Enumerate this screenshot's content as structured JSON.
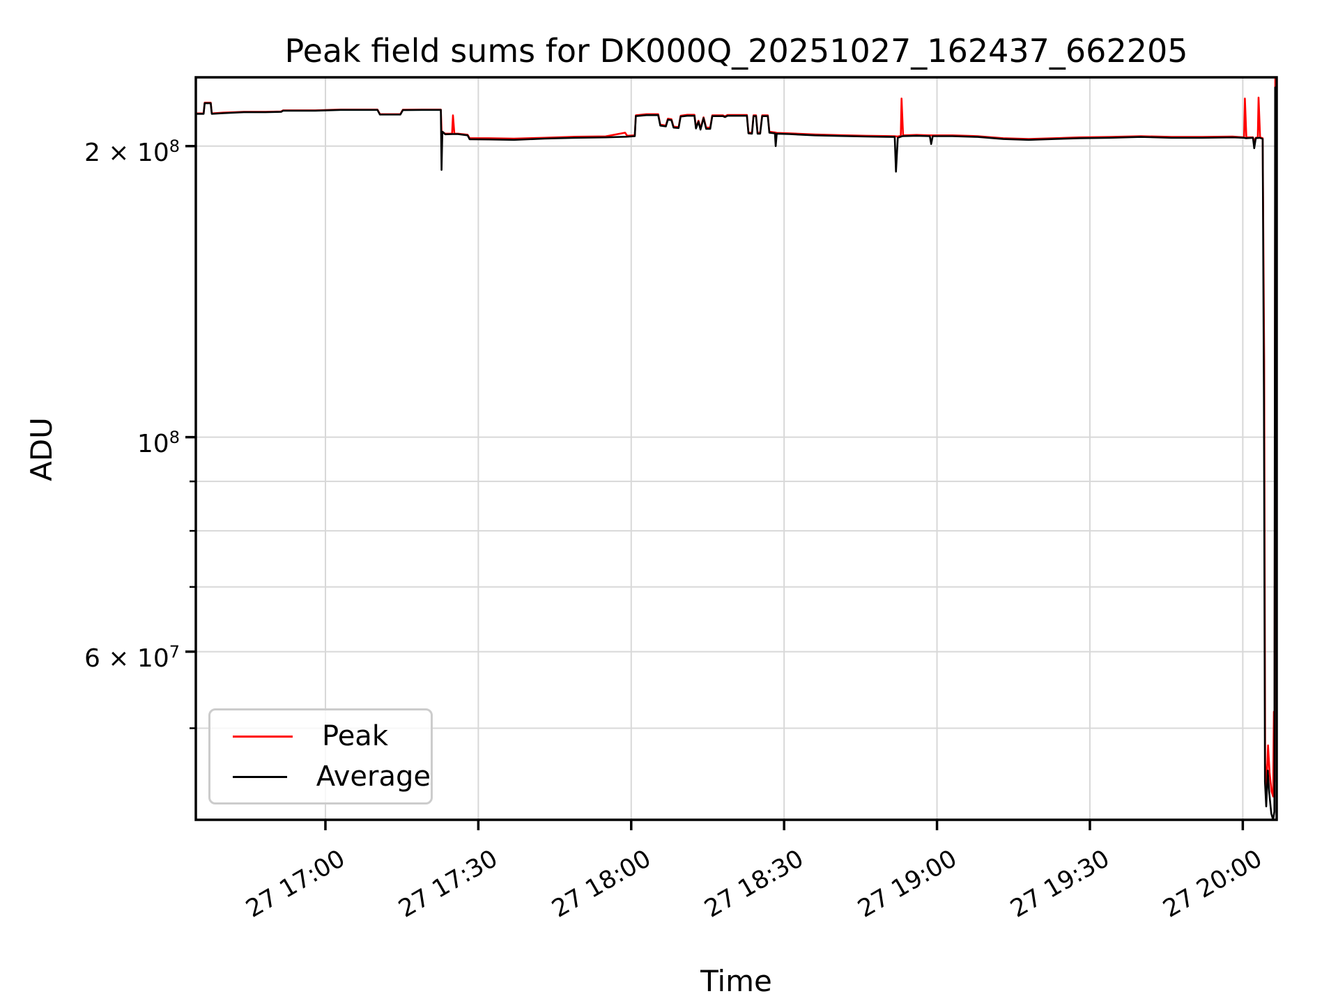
{
  "figure": {
    "background": "#ffffff"
  },
  "chart_data": {
    "type": "line",
    "title": "Peak field sums for DK000Q_20251027_162437_662205",
    "xlabel": "Time",
    "ylabel": "ADU",
    "x_unit": "minutes after Oct 27 16:00",
    "y_unit": "ADU",
    "y_scale": "log",
    "grid": true,
    "legend_position": "lower-left",
    "colors": {
      "peak": "#ff0000",
      "average": "#000000",
      "grid": "#d8d8d8",
      "spine": "#000000",
      "background": "#ffffff"
    },
    "xlim": [
      34.57,
      246.65
    ],
    "ylim": [
      40200000.0,
      235600000.0
    ],
    "x_ticks": [
      {
        "v": 60,
        "label": "27 17:00"
      },
      {
        "v": 90,
        "label": "27 17:30"
      },
      {
        "v": 120,
        "label": "27 18:00"
      },
      {
        "v": 150,
        "label": "27 18:30"
      },
      {
        "v": 180,
        "label": "27 19:00"
      },
      {
        "v": 210,
        "label": "27 19:30"
      },
      {
        "v": 240,
        "label": "27 20:00"
      }
    ],
    "y_ticks_major": [
      {
        "v": 200000000.0,
        "base": "2 × 10",
        "exp": "8"
      },
      {
        "v": 100000000.0,
        "base": "10",
        "exp": "8"
      },
      {
        "v": 60000000.0,
        "base": "6 × 10",
        "exp": "7"
      }
    ],
    "y_ticks_minor": [
      90000000.0,
      80000000.0,
      70000000.0,
      50000000.0
    ],
    "legend": {
      "entries": [
        {
          "label": "Peak",
          "color": "#ff0000"
        },
        {
          "label": "Average",
          "color": "#000000"
        }
      ]
    },
    "series": [
      {
        "name": "Peak",
        "color": "#ff0000",
        "points": [
          [
            34.57,
            216200000.0
          ],
          [
            36.1,
            216200000.0
          ],
          [
            36.3,
            221800000.0
          ],
          [
            37.5,
            221800000.0
          ],
          [
            37.7,
            216200000.0
          ],
          [
            40,
            216600000.0
          ],
          [
            44,
            217000000.0
          ],
          [
            48,
            217000000.0
          ],
          [
            51.3,
            217200000.0
          ],
          [
            51.7,
            217800000.0
          ],
          [
            58,
            217800000.0
          ],
          [
            63,
            218200000.0
          ],
          [
            70.2,
            218200000.0
          ],
          [
            70.7,
            215800000.0
          ],
          [
            74.7,
            215800000.0
          ],
          [
            75.2,
            218100000.0
          ],
          [
            79,
            218200000.0
          ],
          [
            82.65,
            218200000.0
          ],
          [
            82.8,
            207200000.0
          ],
          [
            83.5,
            206000000.0
          ],
          [
            84.85,
            206000000.0
          ],
          [
            85.02,
            215200000.0
          ],
          [
            85.3,
            206000000.0
          ],
          [
            86,
            206000000.0
          ],
          [
            87.9,
            205500000.0
          ],
          [
            88.3,
            203800000.0
          ],
          [
            92,
            203800000.0
          ],
          [
            97,
            203600000.0
          ],
          [
            103,
            204000000.0
          ],
          [
            109,
            204500000.0
          ],
          [
            115,
            204700000.0
          ],
          [
            118.8,
            206500000.0
          ],
          [
            119.2,
            205000000.0
          ],
          [
            120.7,
            205200000.0
          ],
          [
            120.9,
            215200000.0
          ],
          [
            123,
            215800000.0
          ],
          [
            125.3,
            215800000.0
          ],
          [
            125.7,
            210500000.0
          ],
          [
            126.8,
            210000000.0
          ],
          [
            127.2,
            213500000.0
          ],
          [
            127.9,
            213200000.0
          ],
          [
            128.3,
            209500000.0
          ],
          [
            129.3,
            209200000.0
          ],
          [
            129.7,
            215000000.0
          ],
          [
            131,
            215500000.0
          ],
          [
            132.4,
            215500000.0
          ],
          [
            132.7,
            209000000.0
          ],
          [
            133.2,
            212500000.0
          ],
          [
            133.6,
            208500000.0
          ],
          [
            134.2,
            214200000.0
          ],
          [
            134.7,
            209000000.0
          ],
          [
            135.5,
            209000000.0
          ],
          [
            135.9,
            215200000.0
          ],
          [
            138,
            215200000.0
          ],
          [
            138.4,
            214700000.0
          ],
          [
            138.9,
            215400000.0
          ],
          [
            142.7,
            215400000.0
          ],
          [
            143,
            206600000.0
          ],
          [
            143.7,
            206400000.0
          ],
          [
            144,
            215200000.0
          ],
          [
            144.5,
            215200000.0
          ],
          [
            144.8,
            206400000.0
          ],
          [
            145.3,
            206400000.0
          ],
          [
            145.7,
            215200000.0
          ],
          [
            146.8,
            215200000.0
          ],
          [
            147.1,
            207000000.0
          ],
          [
            148.2,
            206600000.0
          ],
          [
            148.55,
            206400000.0
          ],
          [
            151,
            206200000.0
          ],
          [
            156,
            205600000.0
          ],
          [
            161,
            205300000.0
          ],
          [
            166,
            205000000.0
          ],
          [
            171.7,
            204800000.0
          ],
          [
            172.3,
            204600000.0
          ],
          [
            172.9,
            205000000.0
          ],
          [
            173.05,
            224000000.0
          ],
          [
            173.35,
            205200000.0
          ],
          [
            176,
            205400000.0
          ],
          [
            178.6,
            205200000.0
          ],
          [
            179.15,
            205200000.0
          ],
          [
            183,
            205200000.0
          ],
          [
            188,
            204800000.0
          ],
          [
            193,
            203800000.0
          ],
          [
            198,
            203400000.0
          ],
          [
            203,
            203800000.0
          ],
          [
            208,
            204200000.0
          ],
          [
            214,
            204400000.0
          ],
          [
            220,
            204800000.0
          ],
          [
            226,
            204400000.0
          ],
          [
            232,
            204400000.0
          ],
          [
            238,
            204600000.0
          ],
          [
            240.25,
            204200000.0
          ],
          [
            240.42,
            224000000.0
          ],
          [
            240.7,
            204200000.0
          ],
          [
            242,
            204200000.0
          ],
          [
            242.25,
            202000000.0
          ],
          [
            242.55,
            204000000.0
          ],
          [
            242.95,
            204200000.0
          ],
          [
            243.1,
            224500000.0
          ],
          [
            243.4,
            204200000.0
          ],
          [
            243.9,
            203800000.0
          ],
          [
            244.2,
            120000000.0
          ],
          [
            244.4,
            46000000.0
          ],
          [
            244.65,
            43500000.0
          ],
          [
            244.95,
            48000000.0
          ],
          [
            245.25,
            45000000.0
          ],
          [
            245.65,
            43000000.0
          ],
          [
            245.95,
            42500000.0
          ],
          [
            246.1,
            52000000.0
          ],
          [
            246.22,
            44000000.0
          ],
          [
            246.38,
            235000000.0
          ],
          [
            246.6,
            235000000.0
          ]
        ]
      },
      {
        "name": "Average",
        "color": "#000000",
        "points": [
          [
            34.57,
            216000000.0
          ],
          [
            36.1,
            216000000.0
          ],
          [
            36.3,
            221500000.0
          ],
          [
            37.5,
            221500000.0
          ],
          [
            37.7,
            216000000.0
          ],
          [
            40,
            216300000.0
          ],
          [
            44,
            216800000.0
          ],
          [
            48,
            216800000.0
          ],
          [
            51.3,
            217000000.0
          ],
          [
            51.7,
            217600000.0
          ],
          [
            58,
            217600000.0
          ],
          [
            63,
            218000000.0
          ],
          [
            70.2,
            218000000.0
          ],
          [
            70.7,
            215600000.0
          ],
          [
            74.7,
            215600000.0
          ],
          [
            75.2,
            217900000.0
          ],
          [
            79,
            218000000.0
          ],
          [
            82.65,
            218000000.0
          ],
          [
            82.78,
            189000000.0
          ],
          [
            82.95,
            207000000.0
          ],
          [
            83.5,
            205700000.0
          ],
          [
            84.9,
            205800000.0
          ],
          [
            86,
            205800000.0
          ],
          [
            87.9,
            205200000.0
          ],
          [
            88.3,
            203300000.0
          ],
          [
            92,
            203200000.0
          ],
          [
            97,
            203000000.0
          ],
          [
            103,
            203600000.0
          ],
          [
            109,
            204000000.0
          ],
          [
            115,
            204200000.0
          ],
          [
            119,
            204500000.0
          ],
          [
            120.7,
            204800000.0
          ],
          [
            120.9,
            214800000.0
          ],
          [
            123,
            215300000.0
          ],
          [
            125.3,
            215300000.0
          ],
          [
            125.7,
            210000000.0
          ],
          [
            126.8,
            209600000.0
          ],
          [
            127.2,
            213000000.0
          ],
          [
            127.9,
            212800000.0
          ],
          [
            128.3,
            209000000.0
          ],
          [
            129.3,
            208800000.0
          ],
          [
            129.7,
            214600000.0
          ],
          [
            131,
            215000000.0
          ],
          [
            132.4,
            215000000.0
          ],
          [
            132.7,
            208600000.0
          ],
          [
            133.2,
            212000000.0
          ],
          [
            133.6,
            208000000.0
          ],
          [
            134.2,
            213800000.0
          ],
          [
            134.7,
            208400000.0
          ],
          [
            135.5,
            208400000.0
          ],
          [
            135.9,
            214800000.0
          ],
          [
            138,
            214800000.0
          ],
          [
            138.4,
            214300000.0
          ],
          [
            138.9,
            215000000.0
          ],
          [
            142.7,
            215000000.0
          ],
          [
            143,
            206200000.0
          ],
          [
            143.7,
            206000000.0
          ],
          [
            144,
            214800000.0
          ],
          [
            144.5,
            214800000.0
          ],
          [
            144.8,
            206000000.0
          ],
          [
            145.3,
            206000000.0
          ],
          [
            145.7,
            214800000.0
          ],
          [
            146.8,
            214800000.0
          ],
          [
            147.1,
            206500000.0
          ],
          [
            148.2,
            206200000.0
          ],
          [
            148.35,
            200000000.0
          ],
          [
            148.55,
            206000000.0
          ],
          [
            151,
            205800000.0
          ],
          [
            156,
            205200000.0
          ],
          [
            161,
            204900000.0
          ],
          [
            166,
            204600000.0
          ],
          [
            171.7,
            204400000.0
          ],
          [
            171.95,
            188200000.0
          ],
          [
            172.3,
            204000000.0
          ],
          [
            173.2,
            204800000.0
          ],
          [
            176,
            205000000.0
          ],
          [
            178.6,
            204800000.0
          ],
          [
            178.85,
            201000000.0
          ],
          [
            179.15,
            204800000.0
          ],
          [
            183,
            204800000.0
          ],
          [
            188,
            204400000.0
          ],
          [
            193,
            203400000.0
          ],
          [
            198,
            203000000.0
          ],
          [
            203,
            203400000.0
          ],
          [
            208,
            203800000.0
          ],
          [
            214,
            204000000.0
          ],
          [
            220,
            204400000.0
          ],
          [
            226,
            204000000.0
          ],
          [
            232,
            204000000.0
          ],
          [
            238,
            204200000.0
          ],
          [
            240.2,
            204000000.0
          ],
          [
            240.6,
            203800000.0
          ],
          [
            242,
            204000000.0
          ],
          [
            242.25,
            199000000.0
          ],
          [
            242.55,
            203800000.0
          ],
          [
            243.3,
            204000000.0
          ],
          [
            243.9,
            203500000.0
          ],
          [
            244.15,
            110000000.0
          ],
          [
            244.35,
            44000000.0
          ],
          [
            244.6,
            41500000.0
          ],
          [
            244.9,
            45200000.0
          ],
          [
            245.2,
            42800000.0
          ],
          [
            245.6,
            40800000.0
          ],
          [
            245.95,
            40200000.0
          ],
          [
            246.2,
            41000000.0
          ],
          [
            246.35,
            230000000.0
          ],
          [
            246.6,
            230000000.0
          ]
        ]
      }
    ]
  }
}
